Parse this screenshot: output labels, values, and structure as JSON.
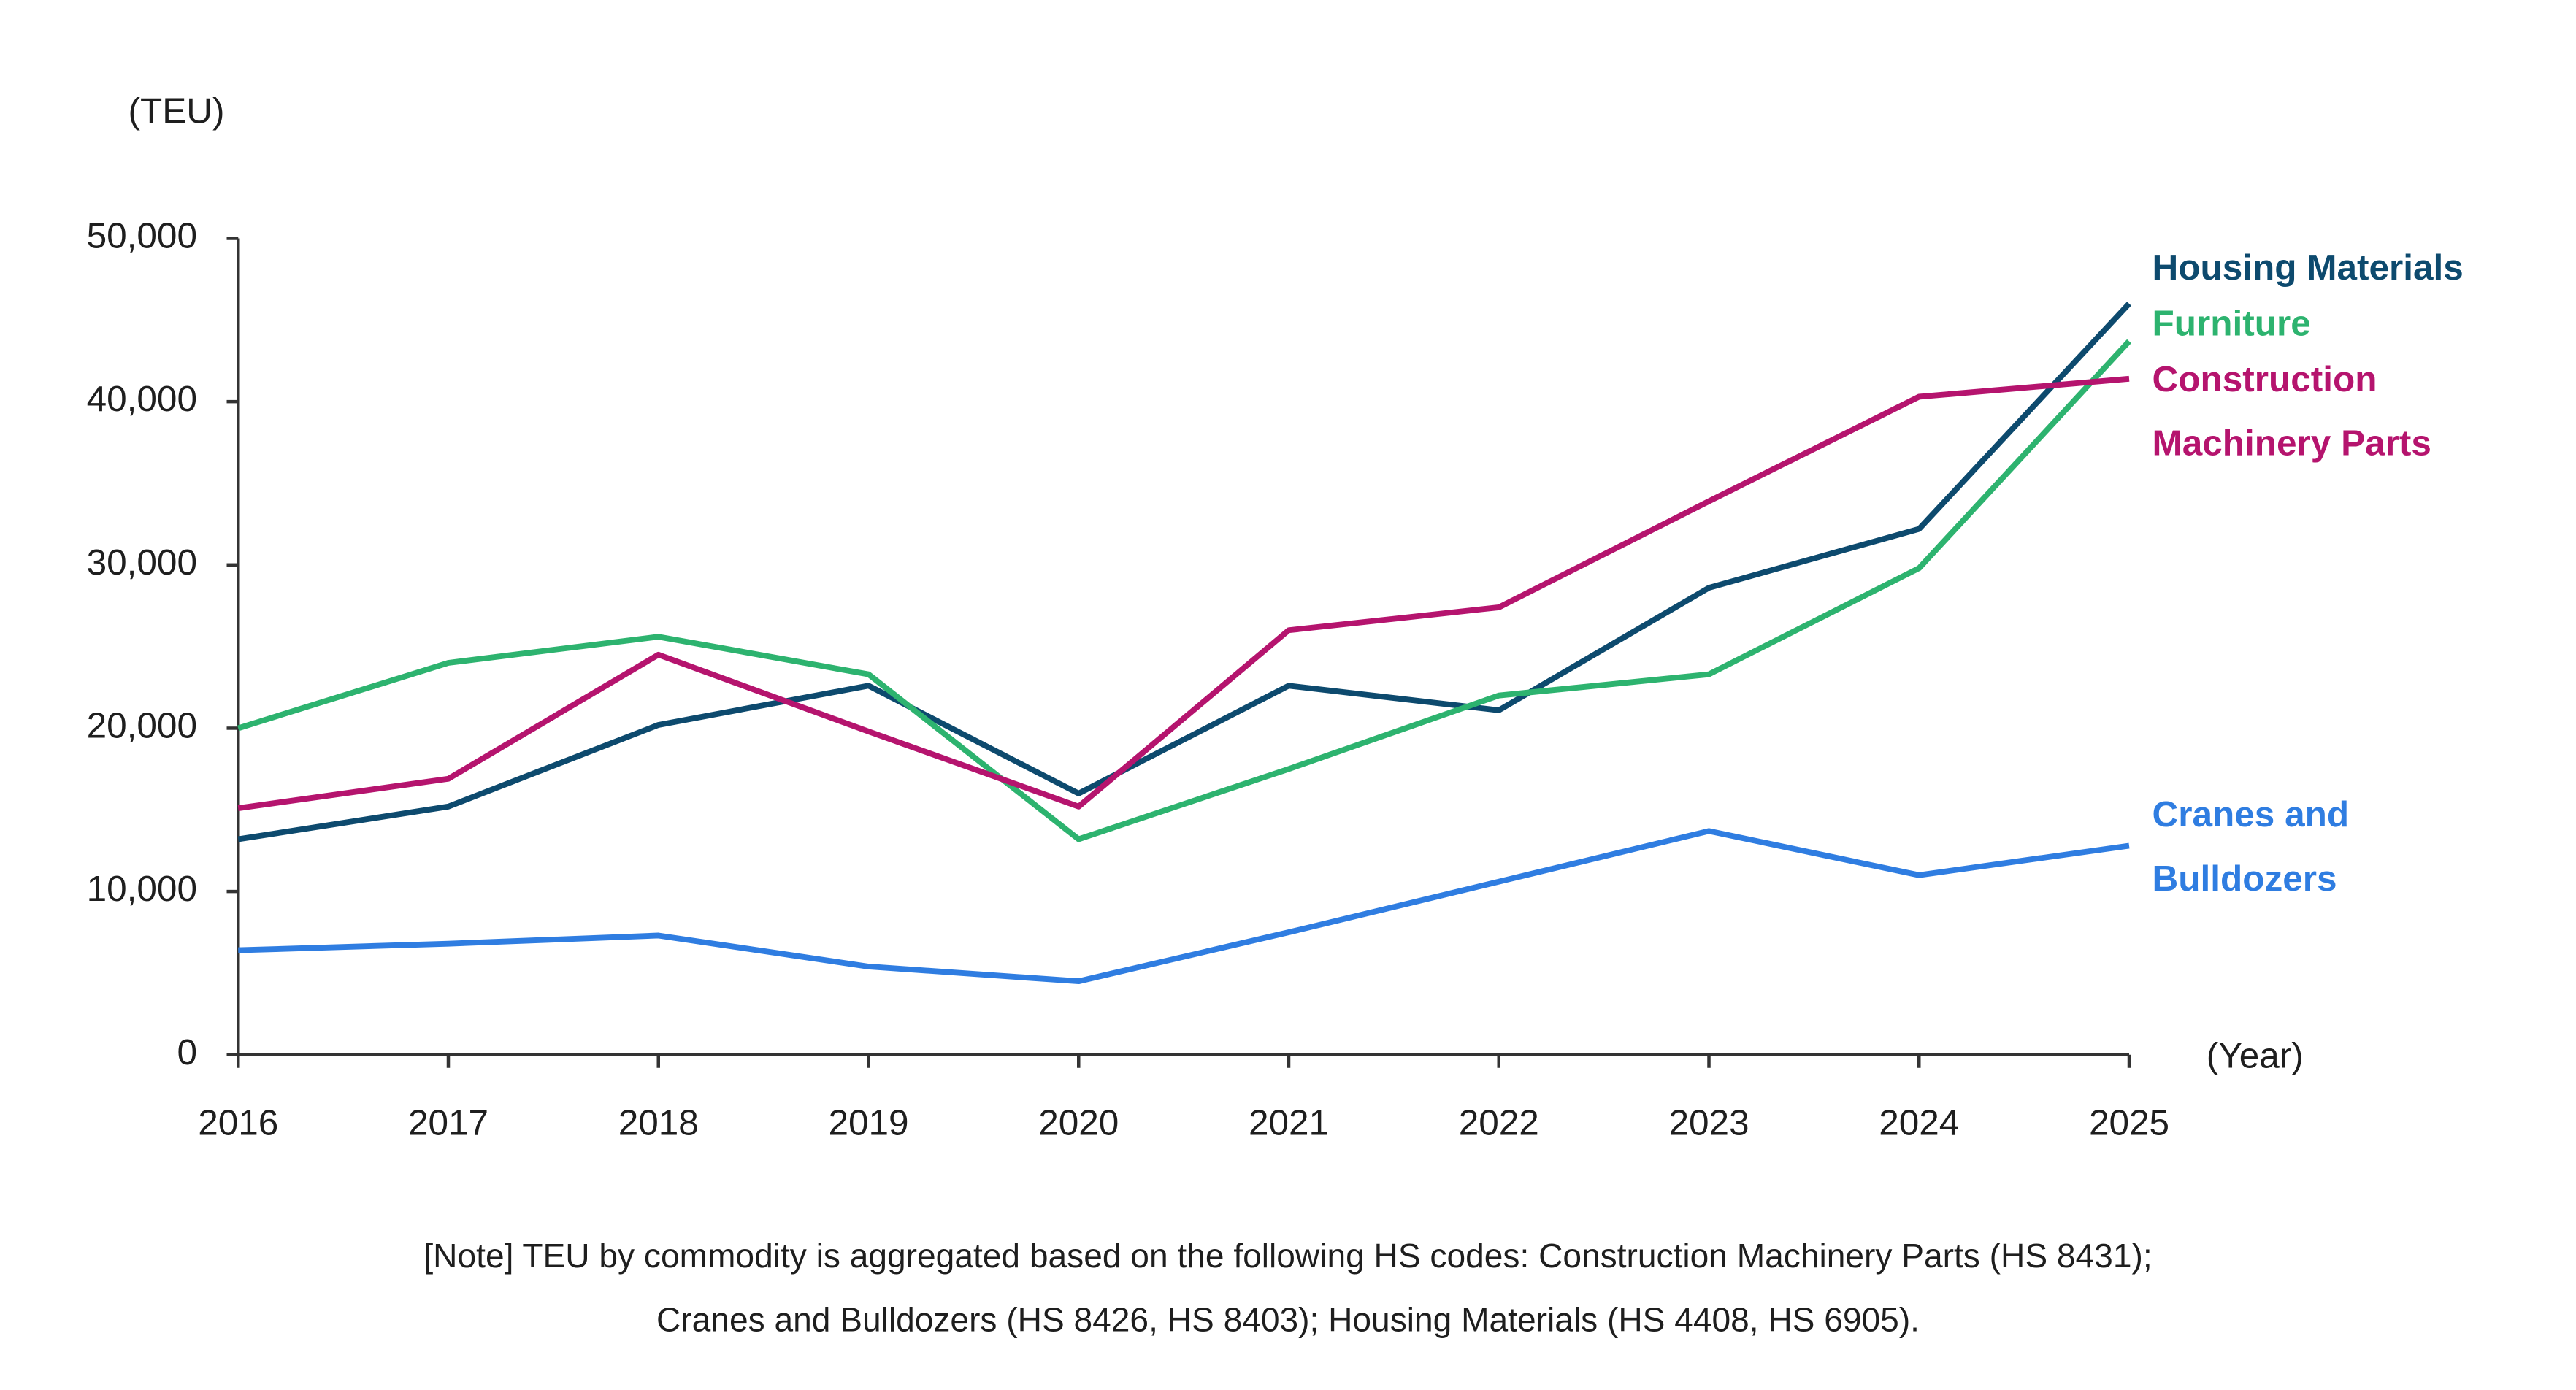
{
  "chart_data": {
    "type": "line",
    "y_label": "(TEU)",
    "x_label": "(Year)",
    "x": [
      2016,
      2017,
      2018,
      2019,
      2020,
      2021,
      2022,
      2023,
      2024,
      2025
    ],
    "xlim": [
      2016,
      2025
    ],
    "xticks": [
      2016,
      2017,
      2018,
      2019,
      2020,
      2021,
      2022,
      2023,
      2024,
      2025
    ],
    "ylim": [
      0,
      50000
    ],
    "yticks": [
      0,
      {
        "value": 10000,
        "label": "10,000"
      },
      {
        "value": 20000,
        "label": "20,000"
      },
      {
        "value": 30000,
        "label": "30,000"
      },
      {
        "value": 40000,
        "label": "40,000"
      },
      {
        "value": 50000,
        "label": "50,000"
      }
    ],
    "grid": false,
    "series": [
      {
        "name": "Housing Materials",
        "color": "#0d4a6e",
        "values": [
          13200,
          15200,
          20200,
          22600,
          16000,
          22600,
          21100,
          28600,
          32200,
          46000
        ]
      },
      {
        "name": "Furniture",
        "color": "#2db36f",
        "values": [
          20000,
          24000,
          25600,
          23300,
          13200,
          17500,
          22000,
          23300,
          29800,
          43700
        ]
      },
      {
        "name": "Construction Machinery Parts",
        "color": "#b5146e",
        "values": [
          15100,
          16900,
          24500,
          19800,
          15200,
          26000,
          27400,
          33900,
          40300,
          41400
        ]
      },
      {
        "name": "Cranes and Bulldozers",
        "color": "#2f7de1",
        "values": [
          6400,
          6800,
          7300,
          5400,
          4500,
          7500,
          10600,
          13700,
          11000,
          12800
        ]
      }
    ],
    "note": [
      "[Note] TEU by commodity is aggregated based on the following HS codes: Construction Machinery Parts (HS 8431);",
      "Cranes and Bulldozers (HS 8426, HS 8403); Housing Materials (HS 4408, HS 6905)."
    ]
  }
}
